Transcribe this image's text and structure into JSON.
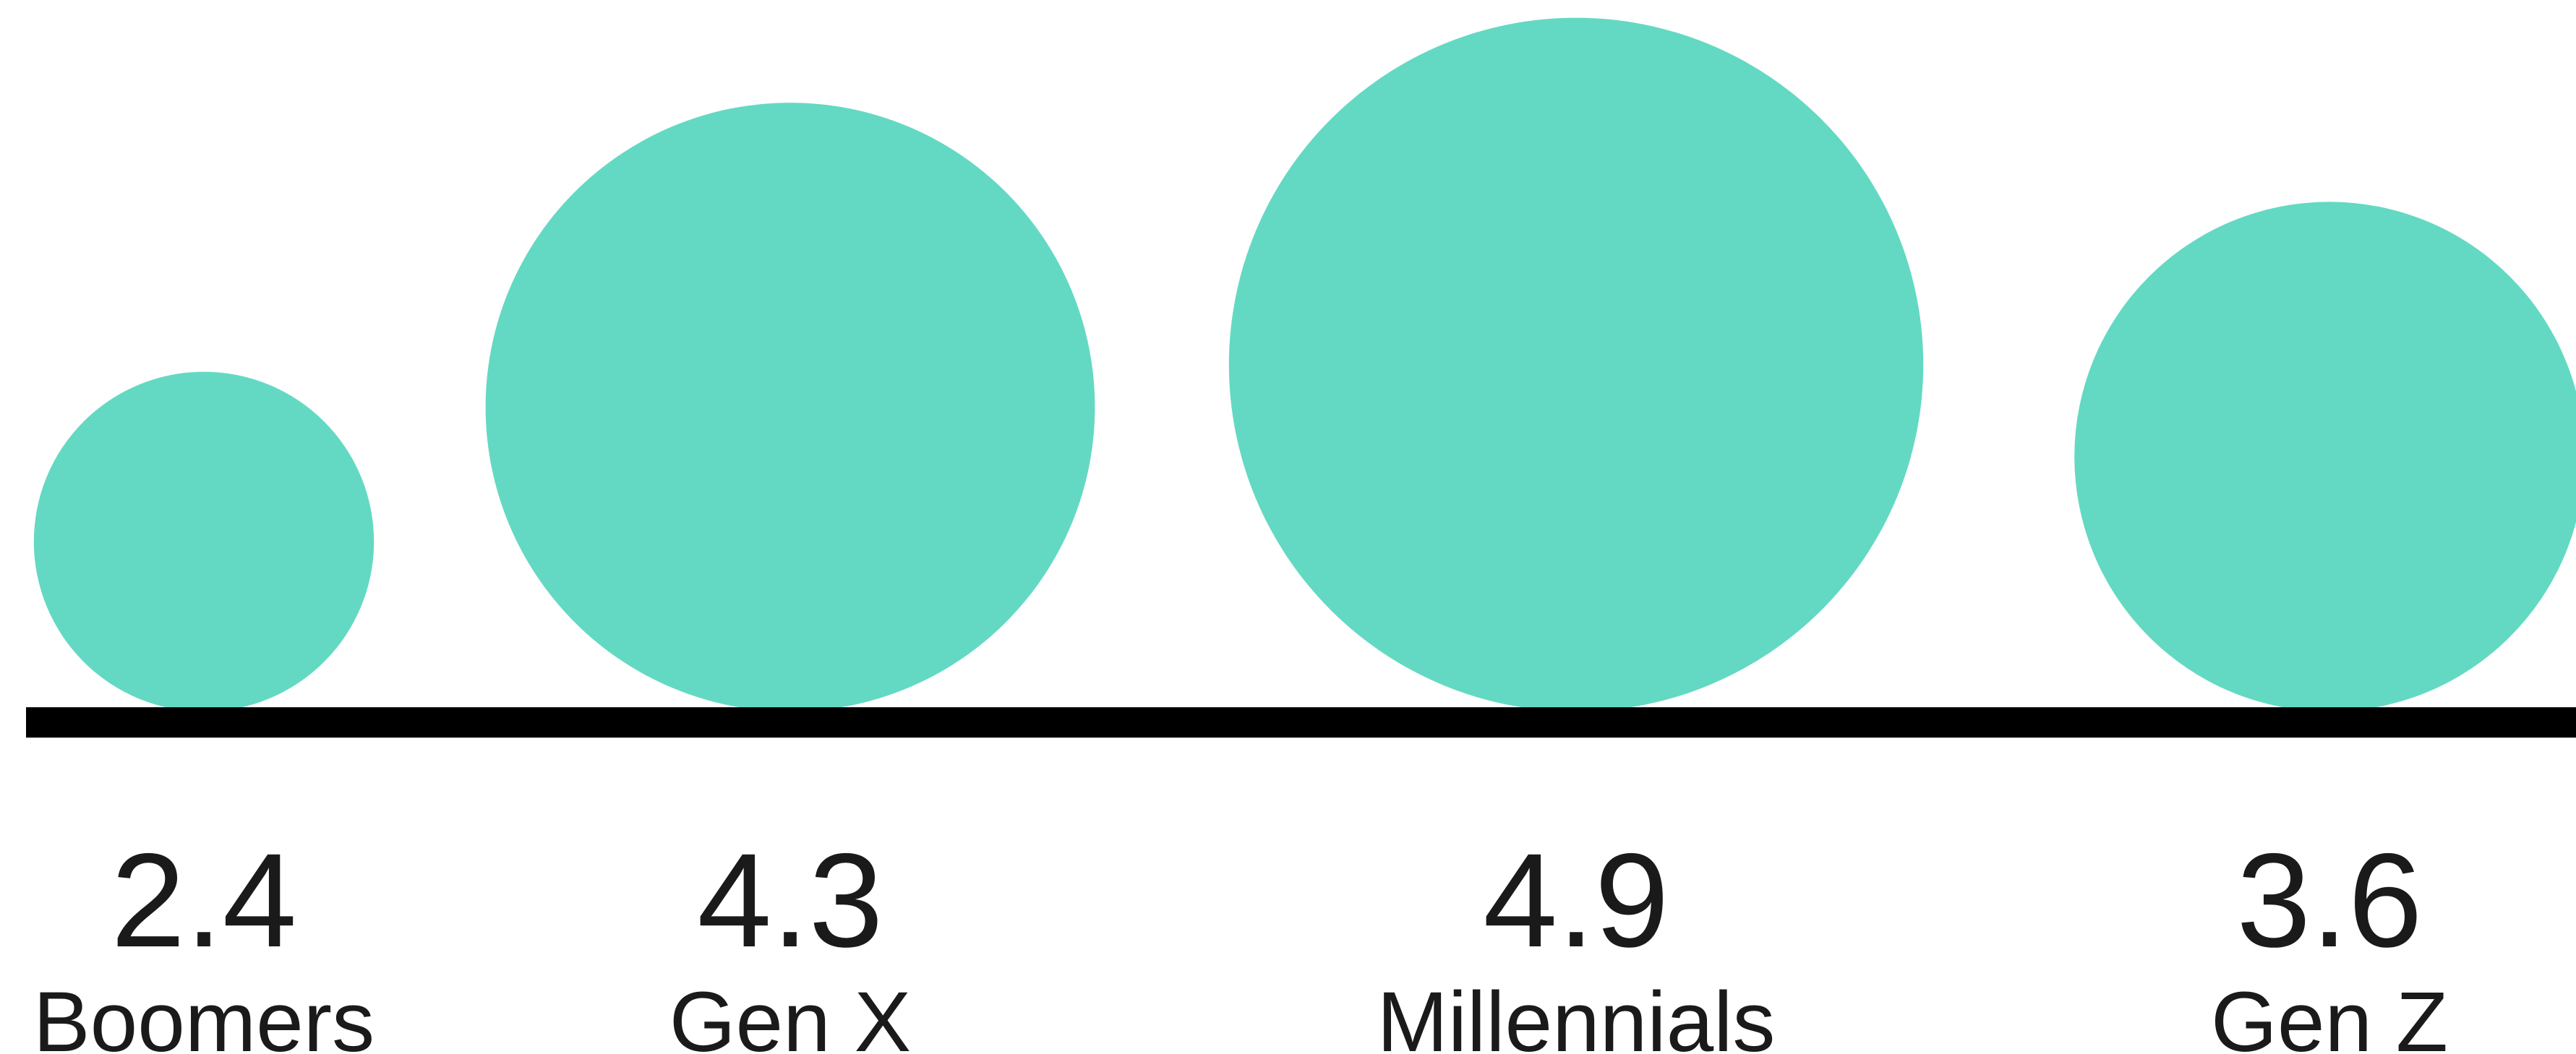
{
  "chart_data": {
    "type": "bubble",
    "title": "",
    "xlabel": "",
    "ylabel": "",
    "categories": [
      "Boomers",
      "Gen X",
      "Millennials",
      "Gen Z"
    ],
    "values": [
      2.4,
      4.3,
      4.9,
      3.6
    ],
    "value_labels": [
      "2.4",
      "4.3",
      "4.9",
      "3.6"
    ],
    "grid": false,
    "legend": "none"
  },
  "colors": {
    "bubble": "#63D9C3",
    "baseline": "#000000",
    "text": "#1a1a1a"
  }
}
